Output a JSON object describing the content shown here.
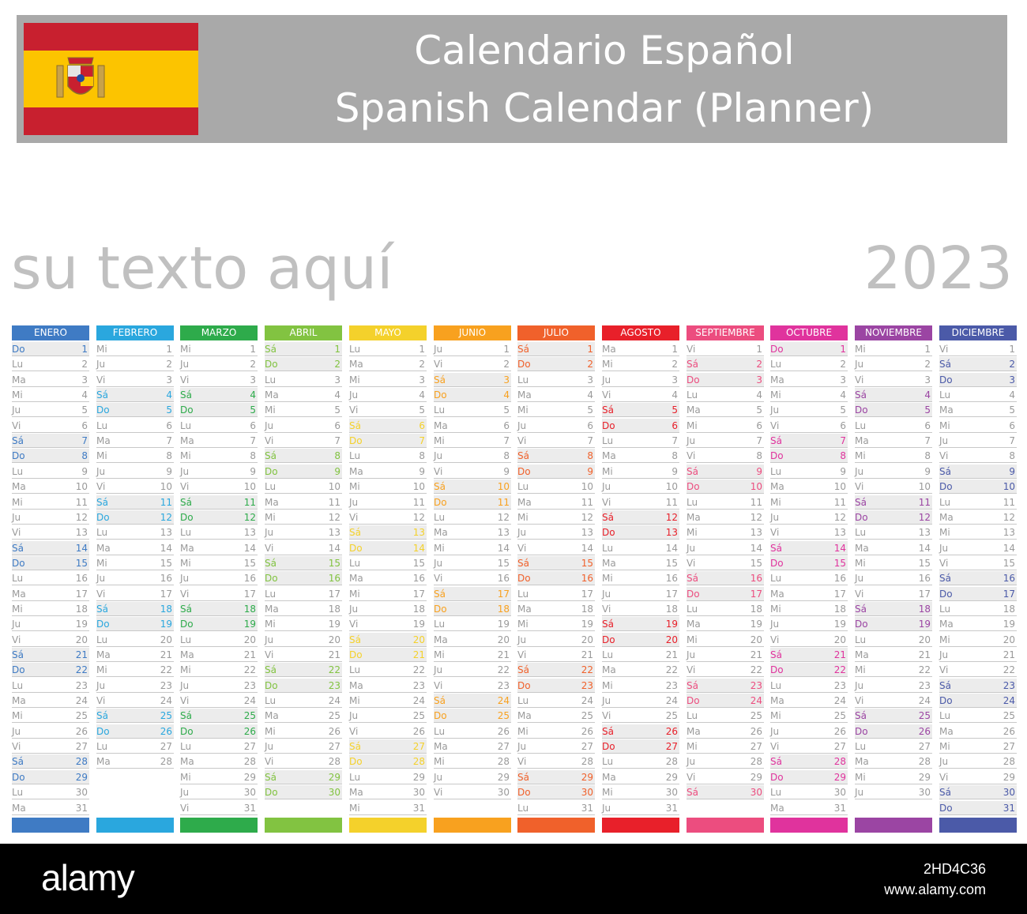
{
  "header": {
    "title_line_1": "Calendario Español",
    "title_line_2": "Spanish Calendar (Planner)",
    "bar_color": "#a9a9a9",
    "flag": {
      "name": "spain-flag",
      "red": "#c8202f",
      "yellow": "#fcc400"
    }
  },
  "custom_text": "su texto aquí",
  "year": "2023",
  "day_names": [
    "Lu",
    "Ma",
    "Mi",
    "Ju",
    "Vi",
    "Sá",
    "Do"
  ],
  "months": [
    {
      "name": "ENERO",
      "color": "#3f7bc4",
      "days": 31,
      "start_weekday": 6
    },
    {
      "name": "FEBRERO",
      "color": "#2aa7de",
      "days": 28,
      "start_weekday": 2
    },
    {
      "name": "MARZO",
      "color": "#2eab4b",
      "days": 31,
      "start_weekday": 2
    },
    {
      "name": "ABRIL",
      "color": "#82c341",
      "days": 30,
      "start_weekday": 5
    },
    {
      "name": "MAYO",
      "color": "#f4d12b",
      "days": 31,
      "start_weekday": 0
    },
    {
      "name": "JUNIO",
      "color": "#f8a11f",
      "days": 30,
      "start_weekday": 3
    },
    {
      "name": "JULIO",
      "color": "#f0612b",
      "days": 31,
      "start_weekday": 5
    },
    {
      "name": "AGOSTO",
      "color": "#e8202a",
      "days": 31,
      "start_weekday": 1
    },
    {
      "name": "SEPTIEMBRE",
      "color": "#ec4d7f",
      "days": 30,
      "start_weekday": 4
    },
    {
      "name": "OCTUBRE",
      "color": "#e0339d",
      "days": 31,
      "start_weekday": 6
    },
    {
      "name": "NOVIEMBRE",
      "color": "#9b45a3",
      "days": 30,
      "start_weekday": 2
    },
    {
      "name": "DICIEMBRE",
      "color": "#4b5aa8",
      "days": 31,
      "start_weekday": 4
    }
  ],
  "footer": {
    "brand": "alamy",
    "image_id": "2HD4C36",
    "url": "www.alamy.com"
  }
}
